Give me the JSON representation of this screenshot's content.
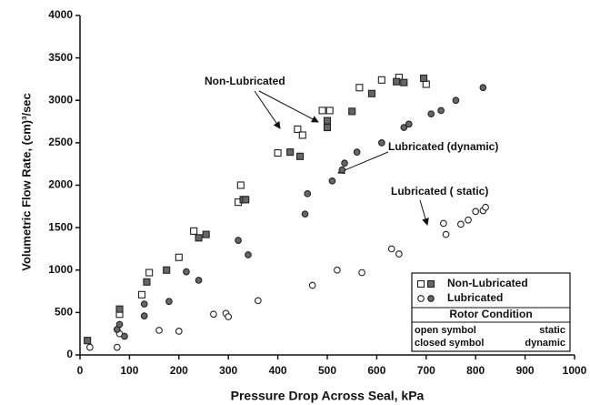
{
  "chart_data": {
    "type": "scatter",
    "xlabel": "Pressure Drop Across Seal,  kPa",
    "ylabel": "Volumetric Flow Rate,  (cm)³/sec",
    "xlim": [
      0,
      1000
    ],
    "xticks": [
      0,
      100,
      200,
      300,
      400,
      500,
      600,
      700,
      800,
      900,
      1000
    ],
    "ylim": [
      0,
      4000
    ],
    "yticks": [
      0,
      500,
      1000,
      1500,
      2000,
      2500,
      3000,
      3500,
      4000
    ],
    "color": "#222222",
    "series": [
      {
        "name": "Non-Lubricated",
        "marker": "square",
        "groups": [
          {
            "filled": false,
            "x": [
              80,
              125,
              140,
              200,
              230,
              320,
              325,
              400,
              440,
              450,
              490,
              505,
              565,
              610,
              645,
              700
            ],
            "values": [
              480,
              710,
              970,
              1150,
              1460,
              1800,
              2000,
              2380,
              2660,
              2590,
              2880,
              2880,
              3150,
              3240,
              3270,
              3190
            ]
          },
          {
            "filled": true,
            "x": [
              15,
              80,
              135,
              175,
              240,
              255,
              330,
              335,
              425,
              445,
              500,
              500,
              550,
              590,
              640,
              655,
              695
            ],
            "values": [
              170,
              540,
              860,
              1000,
              1380,
              1420,
              1830,
              1830,
              2390,
              2340,
              2760,
              2680,
              2870,
              3080,
              3220,
              3210,
              3260
            ]
          }
        ]
      },
      {
        "name": "Lubricated",
        "marker": "circle",
        "groups": [
          {
            "filled": false,
            "x": [
              20,
              75,
              80,
              160,
              200,
              270,
              295,
              300,
              360,
              470,
              520,
              570,
              630,
              645,
              735,
              740,
              770,
              785,
              800,
              815,
              820
            ],
            "values": [
              90,
              90,
              250,
              290,
              280,
              480,
              490,
              450,
              640,
              820,
              1000,
              970,
              1250,
              1190,
              1550,
              1420,
              1540,
              1590,
              1690,
              1700,
              1740
            ]
          },
          {
            "filled": true,
            "x": [
              75,
              80,
              90,
              130,
              130,
              180,
              215,
              240,
              320,
              340,
              455,
              460,
              510,
              530,
              535,
              560,
              610,
              655,
              665,
              710,
              730,
              760,
              815
            ],
            "values": [
              300,
              360,
              220,
              460,
              600,
              630,
              980,
              880,
              1350,
              1180,
              1660,
              1900,
              2050,
              2180,
              2260,
              2390,
              2500,
              2680,
              2720,
              2840,
              2880,
              3000,
              3150
            ]
          }
        ]
      }
    ],
    "annotations": [
      "Non-Lubricated",
      "Lubricated  (dynamic)",
      "Lubricated  (   static)"
    ],
    "legend_note": {
      "title": "Rotor Condition",
      "rows": [
        {
          "symbol": "open symbol",
          "condition": "static"
        },
        {
          "symbol": "closed symbol",
          "condition": "dynamic"
        }
      ]
    }
  }
}
